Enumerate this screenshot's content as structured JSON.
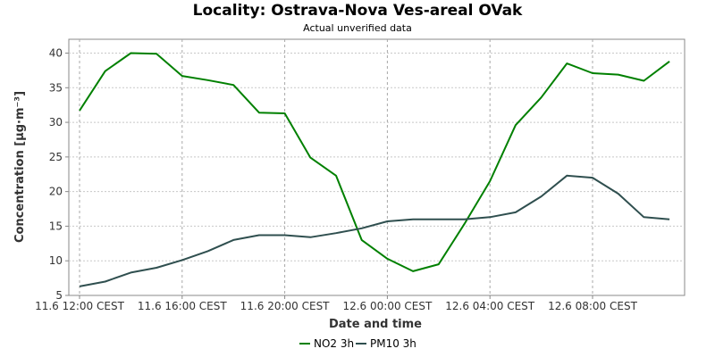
{
  "chart_data": {
    "type": "line",
    "title": "Locality: Ostrava-Nova Ves-areal OVak",
    "subtitle": "Actual unverified data",
    "xlabel": "Date and time",
    "ylabel": "Concentration [µg·m⁻³]",
    "ylim": [
      5,
      42
    ],
    "yticks": [
      5,
      10,
      15,
      20,
      25,
      30,
      35,
      40
    ],
    "grid": true,
    "legend_position": "bottom",
    "xtick_labels": [
      "11.6 12:00 CEST",
      "11.6 16:00 CEST",
      "11.6 20:00 CEST",
      "12.6 00:00 CEST",
      "12.6 04:00 CEST",
      "12.6 08:00 CEST"
    ],
    "x": [
      "11.6 12:00",
      "11.6 13:00",
      "11.6 14:00",
      "11.6 15:00",
      "11.6 16:00",
      "11.6 17:00",
      "11.6 18:00",
      "11.6 19:00",
      "11.6 20:00",
      "11.6 21:00",
      "11.6 22:00",
      "11.6 23:00",
      "12.6 00:00",
      "12.6 01:00",
      "12.6 02:00",
      "12.6 03:00",
      "12.6 04:00",
      "12.6 05:00",
      "12.6 06:00",
      "12.6 07:00",
      "12.6 08:00",
      "12.6 09:00",
      "12.6 10:00",
      "12.6 11:00"
    ],
    "series": [
      {
        "name": "NO2 3h",
        "color": "#008000",
        "values": [
          31.7,
          37.4,
          40.0,
          39.9,
          36.7,
          36.1,
          35.4,
          31.4,
          31.3,
          24.9,
          22.3,
          13.0,
          10.3,
          8.5,
          9.5,
          15.3,
          21.5,
          29.6,
          33.6,
          38.5,
          37.1,
          36.9,
          36.0,
          38.8
        ]
      },
      {
        "name": "PM10 3h",
        "color": "#2f4f4f",
        "values": [
          6.3,
          7.0,
          8.3,
          9.0,
          10.1,
          11.4,
          13.0,
          13.7,
          13.7,
          13.4,
          14.0,
          14.7,
          15.7,
          16.0,
          16.0,
          16.0,
          16.3,
          17.0,
          19.3,
          22.3,
          22.0,
          19.7,
          16.3,
          16.0
        ]
      }
    ]
  }
}
